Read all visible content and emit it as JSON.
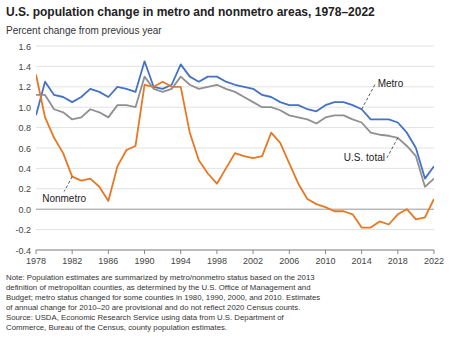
{
  "chart_data": {
    "type": "line",
    "title": "U.S. population change in metro and nonmetro areas, 1978–2022",
    "y_label": "Percent change from previous year",
    "note": "Note: Population estimates are summarized by metro/nonmetro status based on the 2013\ndefinition of metropolitan counties, as determined by the U.S. Office of Management and\nBudget; metro status changed for some counties in 1980, 1990, 2000, and 2010. Estimates\nof annual change for 2010–20 are provisional and do not reflect 2020 Census counts.\nSource: USDA, Economic Research Service using data from U.S. Department of\nCommerce, Bureau of the Census, county population estimates.",
    "x": [
      1978,
      1979,
      1980,
      1981,
      1982,
      1983,
      1984,
      1985,
      1986,
      1987,
      1988,
      1989,
      1990,
      1991,
      1992,
      1993,
      1994,
      1995,
      1996,
      1997,
      1998,
      1999,
      2000,
      2001,
      2002,
      2003,
      2004,
      2005,
      2006,
      2007,
      2008,
      2009,
      2010,
      2011,
      2012,
      2013,
      2014,
      2015,
      2016,
      2017,
      2018,
      2019,
      2020,
      2021,
      2022
    ],
    "series": [
      {
        "name": "Metro",
        "color": "#4472c4",
        "values": [
          0.92,
          1.25,
          1.12,
          1.1,
          1.05,
          1.1,
          1.18,
          1.15,
          1.1,
          1.2,
          1.18,
          1.15,
          1.45,
          1.2,
          1.18,
          1.22,
          1.42,
          1.3,
          1.25,
          1.3,
          1.3,
          1.25,
          1.22,
          1.2,
          1.18,
          1.12,
          1.1,
          1.05,
          1.02,
          1.02,
          0.98,
          0.96,
          1.02,
          1.05,
          1.05,
          1.02,
          0.98,
          0.88,
          0.88,
          0.88,
          0.85,
          0.75,
          0.6,
          0.3,
          0.42
        ]
      },
      {
        "name": "Nonmetro",
        "color": "#e87722",
        "values": [
          1.32,
          0.9,
          0.7,
          0.55,
          0.32,
          0.28,
          0.3,
          0.22,
          0.08,
          0.42,
          0.58,
          0.62,
          1.22,
          1.2,
          1.25,
          1.2,
          1.2,
          0.75,
          0.48,
          0.35,
          0.25,
          0.4,
          0.55,
          0.52,
          0.5,
          0.52,
          0.75,
          0.65,
          0.45,
          0.25,
          0.1,
          0.05,
          0.02,
          -0.02,
          -0.02,
          -0.05,
          -0.18,
          -0.18,
          -0.12,
          -0.15,
          -0.05,
          0.0,
          -0.1,
          -0.08,
          0.1
        ]
      },
      {
        "name": "U.S. total",
        "color": "#909090",
        "values": [
          1.12,
          1.12,
          0.98,
          0.95,
          0.88,
          0.9,
          0.98,
          0.95,
          0.9,
          1.02,
          1.02,
          1.0,
          1.3,
          1.18,
          1.15,
          1.18,
          1.3,
          1.22,
          1.18,
          1.2,
          1.22,
          1.18,
          1.15,
          1.1,
          1.05,
          1.0,
          1.0,
          0.97,
          0.92,
          0.9,
          0.88,
          0.84,
          0.9,
          0.92,
          0.92,
          0.88,
          0.85,
          0.75,
          0.73,
          0.72,
          0.7,
          0.62,
          0.52,
          0.22,
          0.3
        ]
      }
    ],
    "xlim": [
      1978,
      2022
    ],
    "xticks": [
      1978,
      1982,
      1986,
      1990,
      1994,
      1998,
      2002,
      2006,
      2010,
      2014,
      2018,
      2022
    ],
    "ylim": [
      -0.4,
      1.6
    ],
    "yticks": [
      -0.4,
      -0.2,
      {
        "value": 0.0,
        "label": "0.0"
      },
      0.2,
      0.4,
      0.6,
      0.8,
      {
        "value": 1.0,
        "label": "1.0"
      },
      1.2,
      1.4,
      1.6
    ],
    "grid": true
  }
}
